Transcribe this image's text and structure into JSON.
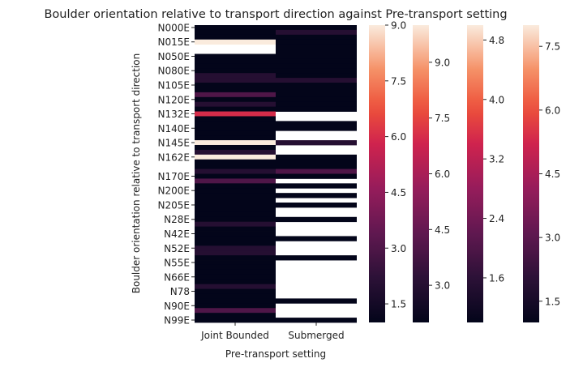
{
  "chart_data": {
    "type": "heatmap",
    "title": "Boulder orientation relative to transport direction against Pre-transport setting",
    "xlabel": "Pre-transport setting",
    "ylabel": "Boulder orientation relative to transport direction",
    "x_categories": [
      "Joint Bounded",
      "Submerged"
    ],
    "y_tick_labels": [
      "N000E",
      "N015E",
      "N050E",
      "N080E",
      "N105E",
      "N120E",
      "N132E",
      "N140E",
      "N145E",
      "N162E",
      "N170E",
      "N200E",
      "N205E",
      "N28E",
      "N42E",
      "N52E",
      "N55E",
      "N66E",
      "N78",
      "N90E",
      "N99E"
    ],
    "n_rows": 62,
    "colormap": "rocket",
    "colorbars": [
      {
        "min": 1,
        "max": 9,
        "ticks": [
          1.5,
          3.0,
          4.5,
          6.0,
          7.5,
          9.0
        ]
      },
      {
        "min": 2,
        "max": 10,
        "ticks": [
          3.0,
          4.5,
          6.0,
          7.5,
          9.0
        ]
      },
      {
        "min": 1,
        "max": 5,
        "ticks": [
          1.6,
          2.4,
          3.2,
          4.0,
          4.8
        ]
      },
      {
        "min": 1,
        "max": 8,
        "ticks": [
          1.5,
          3.0,
          4.5,
          6.0,
          7.5
        ]
      }
    ],
    "series": [
      {
        "values": [
          1,
          1,
          1,
          9,
          null,
          null,
          1,
          1,
          1,
          1,
          2,
          2,
          1,
          1,
          3,
          1,
          2,
          1,
          6,
          1,
          1,
          1,
          1,
          1,
          9,
          1,
          2,
          9,
          1,
          1,
          2,
          1,
          3,
          1,
          1,
          1,
          1,
          1,
          1,
          1,
          1,
          2,
          1,
          1,
          1,
          1,
          2,
          2,
          1,
          1,
          1,
          1,
          1,
          1,
          2,
          1,
          1,
          1,
          1,
          3,
          1,
          1
        ]
      },
      {
        "values": [
          1,
          3,
          2,
          2,
          2,
          1,
          1,
          1,
          1,
          1,
          2,
          3,
          2,
          1,
          1,
          1,
          1,
          1,
          null,
          null,
          1,
          1,
          null,
          null,
          3,
          null,
          null,
          1,
          1,
          1,
          4,
          2,
          null,
          1,
          null,
          1,
          null,
          1,
          null,
          null,
          1,
          null,
          null,
          null,
          1,
          null,
          null,
          null,
          2,
          null,
          null,
          null,
          null,
          null,
          null,
          null,
          null,
          1,
          null,
          null,
          null,
          1
        ]
      }
    ]
  }
}
